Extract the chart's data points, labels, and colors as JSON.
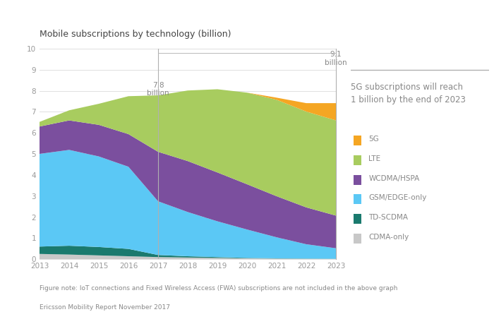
{
  "title": "Mobile subscriptions by technology (billion)",
  "years": [
    2013,
    2014,
    2015,
    2016,
    2017,
    2018,
    2019,
    2020,
    2021,
    2022,
    2023
  ],
  "series": {
    "CDMA-only": [
      0.25,
      0.22,
      0.18,
      0.14,
      0.1,
      0.08,
      0.06,
      0.04,
      0.03,
      0.02,
      0.01
    ],
    "TD-SCDMA": [
      0.35,
      0.42,
      0.4,
      0.35,
      0.1,
      0.06,
      0.04,
      0.02,
      0.01,
      0.01,
      0.01
    ],
    "GSM/EDGE-only": [
      4.4,
      4.55,
      4.3,
      3.9,
      2.55,
      2.1,
      1.7,
      1.35,
      1.0,
      0.68,
      0.5
    ],
    "WCDMA/HSPA": [
      1.3,
      1.4,
      1.5,
      1.55,
      2.35,
      2.42,
      2.32,
      2.15,
      1.95,
      1.75,
      1.55
    ],
    "LTE": [
      0.22,
      0.48,
      1.0,
      1.8,
      2.68,
      3.35,
      3.95,
      4.35,
      4.58,
      4.55,
      4.52
    ],
    "5G": [
      0.0,
      0.0,
      0.0,
      0.0,
      0.0,
      0.0,
      0.0,
      0.0,
      0.1,
      0.4,
      0.82
    ]
  },
  "colors": {
    "CDMA-only": "#c8c8c8",
    "TD-SCDMA": "#1a7a6e",
    "GSM/EDGE-only": "#5bc8f5",
    "WCDMA/HSPA": "#7b4f9e",
    "LTE": "#a8cc5f",
    "5G": "#f5a623"
  },
  "side_text": "5G subscriptions will reach\n1 billion by the end of 2023",
  "footnote1": "Figure note: IoT connections and Fixed Wireless Access (FWA) subscriptions are not included in the above graph",
  "footnote2": "Ericsson Mobility Report November 2017",
  "ylim": [
    0,
    10
  ],
  "yticks": [
    0,
    1,
    2,
    3,
    4,
    5,
    6,
    7,
    8,
    9,
    10
  ],
  "background_color": "#ffffff",
  "legend_items": [
    [
      "5G",
      "#f5a623"
    ],
    [
      "LTE",
      "#a8cc5f"
    ],
    [
      "WCDMA/HSPA",
      "#7b4f9e"
    ],
    [
      "GSM/EDGE-only",
      "#5bc8f5"
    ],
    [
      "TD-SCDMA",
      "#1a7a6e"
    ],
    [
      "CDMA-only",
      "#c8c8c8"
    ]
  ]
}
